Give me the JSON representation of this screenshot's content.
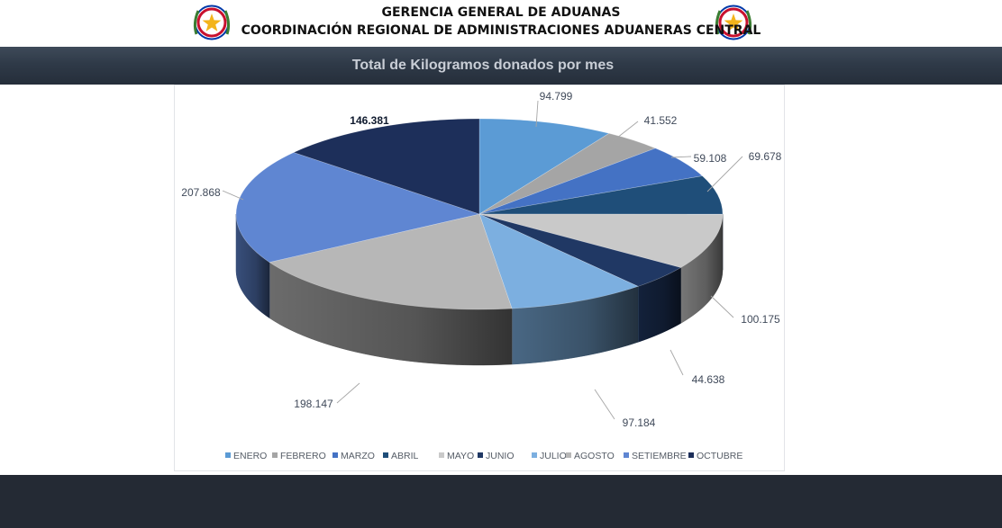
{
  "header": {
    "line1": "GERENCIA GENERAL DE ADUANAS",
    "line2": "COORDINACIÓN REGIONAL DE ADMINISTRACIONES ADUANERAS CENTRAL"
  },
  "banner": {
    "title": "Total de Kilogramos donados por mes"
  },
  "chart_data": {
    "type": "pie",
    "categories": [
      "ENERO",
      "FEBRERO",
      "MARZO",
      "ABRIL",
      "MAYO",
      "JUNIO",
      "JULIO",
      "AGOSTO",
      "SETIEMBRE",
      "OCTUBRE"
    ],
    "values": [
      94799,
      41552,
      59108,
      69678,
      100175,
      44638,
      97184,
      198147,
      207868,
      146381
    ],
    "data_labels": [
      "94.799",
      "41.552",
      "59.108",
      "69.678",
      "100.175",
      "44.638",
      "97.184",
      "198.147",
      "207.868",
      "146.381"
    ],
    "colors": [
      "#5b9bd5",
      "#a5a5a5",
      "#4472c4",
      "#1f4e79",
      "#c9c9c9",
      "#203864",
      "#7cafe0",
      "#b7b7b7",
      "#5f86d2",
      "#1d2f5a"
    ],
    "legend_position": "bottom"
  }
}
